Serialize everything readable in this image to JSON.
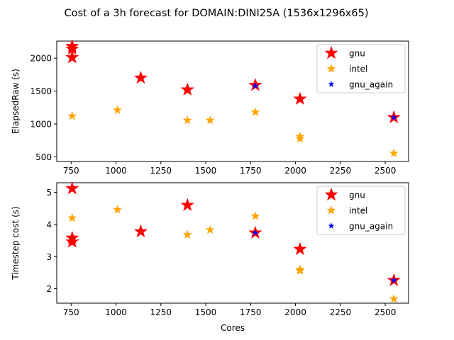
{
  "figure": {
    "title": "Cost of a 3h forecast for DOMAIN:DINI25A (1536x1296x65)"
  },
  "chart_data": [
    {
      "type": "scatter",
      "xlabel": "",
      "ylabel": "ElapsedRaw (s)",
      "xlim": [
        670,
        2630
      ],
      "ylim": [
        430,
        2260
      ],
      "xticks": [
        750,
        1000,
        1250,
        1500,
        1750,
        2000,
        2250,
        2500
      ],
      "yticks": [
        500,
        1000,
        1500,
        2000
      ],
      "grid": false,
      "legend_position": "upper right",
      "series": [
        {
          "name": "gnu",
          "color": "#ff0000",
          "marker": "star-large",
          "x": [
            756,
            756,
            756,
            1138,
            1398,
            1776,
            2025,
            2548
          ],
          "y": [
            2180,
            2140,
            2010,
            1700,
            1520,
            1590,
            1380,
            1100
          ]
        },
        {
          "name": "intel",
          "color": "#ffa500",
          "marker": "star-medium",
          "x": [
            756,
            1008,
            1398,
            1524,
            1776,
            2025,
            2025,
            2548
          ],
          "y": [
            1120,
            1210,
            1055,
            1055,
            1180,
            810,
            775,
            555
          ]
        },
        {
          "name": "gnu_again",
          "color": "#0000ff",
          "marker": "star-small",
          "x": [
            1776,
            2548
          ],
          "y": [
            1580,
            1100
          ]
        }
      ]
    },
    {
      "type": "scatter",
      "xlabel": "Cores",
      "ylabel": "Timestep cost (s)",
      "xlim": [
        670,
        2630
      ],
      "ylim": [
        1.55,
        5.3
      ],
      "xticks": [
        750,
        1000,
        1250,
        1500,
        1750,
        2000,
        2250,
        2500
      ],
      "yticks": [
        2,
        3,
        4,
        5
      ],
      "grid": false,
      "legend_position": "upper right",
      "series": [
        {
          "name": "gnu",
          "color": "#ff0000",
          "marker": "star-large",
          "x": [
            756,
            756,
            756,
            1138,
            1398,
            1776,
            2025,
            2548
          ],
          "y": [
            5.12,
            3.58,
            3.46,
            3.78,
            4.6,
            3.74,
            3.23,
            2.26
          ]
        },
        {
          "name": "intel",
          "color": "#ffa500",
          "marker": "star-medium",
          "x": [
            756,
            1008,
            1398,
            1524,
            1776,
            2025,
            2025,
            2548
          ],
          "y": [
            4.2,
            4.46,
            3.68,
            3.83,
            4.26,
            2.6,
            2.56,
            1.68
          ]
        },
        {
          "name": "gnu_again",
          "color": "#0000ff",
          "marker": "star-small",
          "x": [
            1776,
            2548
          ],
          "y": [
            3.74,
            2.26
          ]
        }
      ]
    }
  ]
}
